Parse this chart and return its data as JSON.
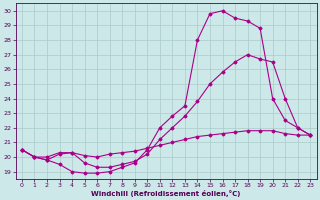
{
  "xlabel": "Windchill (Refroidissement éolien,°C)",
  "bg_color": "#cce8e8",
  "grid_color": "#aacccc",
  "line_color": "#aa0088",
  "xlim": [
    -0.5,
    23.5
  ],
  "ylim": [
    18.5,
    30.5
  ],
  "xticks": [
    0,
    1,
    2,
    3,
    4,
    5,
    6,
    7,
    8,
    9,
    10,
    11,
    12,
    13,
    14,
    15,
    16,
    17,
    18,
    19,
    20,
    21,
    22,
    23
  ],
  "yticks": [
    19,
    20,
    21,
    22,
    23,
    24,
    25,
    26,
    27,
    28,
    29,
    30
  ],
  "series": [
    {
      "x": [
        0,
        1,
        2,
        3,
        4,
        5,
        6,
        7,
        8,
        9,
        10,
        11,
        12,
        13,
        14,
        15,
        16,
        17,
        18,
        19,
        20,
        21,
        22,
        23
      ],
      "y": [
        20.5,
        20.0,
        20.0,
        20.3,
        20.3,
        20.1,
        20.0,
        20.2,
        20.3,
        20.4,
        20.6,
        20.8,
        21.0,
        21.2,
        21.4,
        21.5,
        21.6,
        21.7,
        21.8,
        21.8,
        21.8,
        21.6,
        21.5,
        21.5
      ]
    },
    {
      "x": [
        0,
        1,
        2,
        3,
        4,
        5,
        6,
        7,
        8,
        9,
        10,
        11,
        12,
        13,
        14,
        15,
        16,
        17,
        18,
        19,
        20,
        21,
        22,
        23
      ],
      "y": [
        20.5,
        20.0,
        19.8,
        20.2,
        20.3,
        19.6,
        19.3,
        19.3,
        19.5,
        19.7,
        20.2,
        21.2,
        22.0,
        22.8,
        23.8,
        25.0,
        25.8,
        26.5,
        27.0,
        26.7,
        26.5,
        24.0,
        22.0,
        21.5
      ]
    },
    {
      "x": [
        0,
        1,
        2,
        3,
        4,
        5,
        6,
        7,
        8,
        9,
        10,
        11,
        12,
        13,
        14,
        15,
        16,
        17,
        18,
        19,
        20,
        21,
        22,
        23
      ],
      "y": [
        20.5,
        20.0,
        19.8,
        19.5,
        19.0,
        18.9,
        18.9,
        19.0,
        19.3,
        19.6,
        20.5,
        22.0,
        22.8,
        23.5,
        28.0,
        29.8,
        30.0,
        29.5,
        29.3,
        28.8,
        24.0,
        22.5,
        22.0,
        21.5
      ]
    }
  ]
}
